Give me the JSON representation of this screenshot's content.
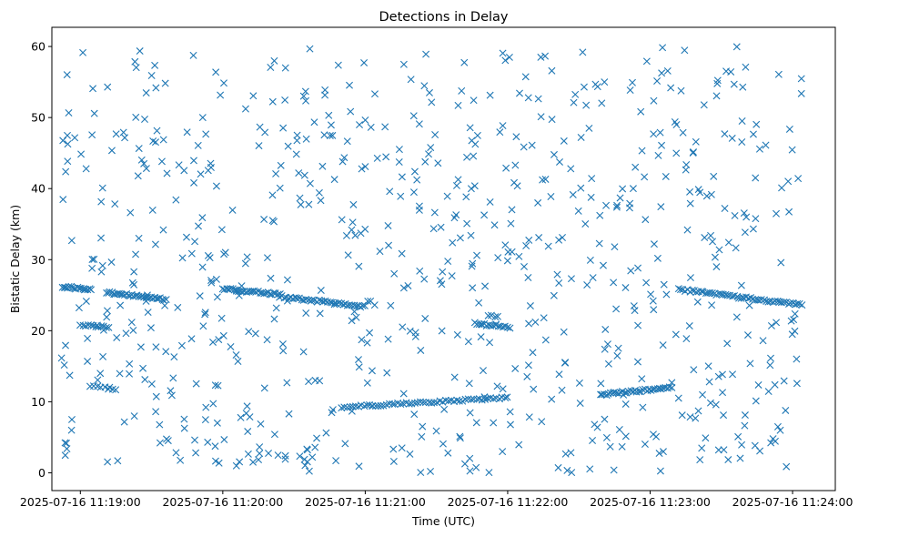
{
  "chart_data": {
    "type": "scatter",
    "title": "Detections in Delay",
    "xlabel": "Time (UTC)",
    "ylabel": "Bistatic Delay (km)",
    "marker": "x",
    "color": "#1f77b4",
    "xlim_seconds": [
      -12,
      318
    ],
    "ylim": [
      -2.5,
      62.7
    ],
    "x_origin": "2025-07-16 11:19:00",
    "x_ticks": [
      {
        "seconds": 0,
        "label": "2025-07-16 11:19:00"
      },
      {
        "seconds": 60,
        "label": "2025-07-16 11:20:00"
      },
      {
        "seconds": 120,
        "label": "2025-07-16 11:21:00"
      },
      {
        "seconds": 180,
        "label": "2025-07-16 11:22:00"
      },
      {
        "seconds": 240,
        "label": "2025-07-16 11:23:00"
      },
      {
        "seconds": 300,
        "label": "2025-07-16 11:24:00"
      }
    ],
    "y_ticks": [
      0,
      10,
      20,
      30,
      40,
      50,
      60
    ],
    "time_span_seconds": [
      -8.5,
      304
    ],
    "tracks": [
      {
        "name": "track-1",
        "t_start": -7.5,
        "t_end": 4.5,
        "y_start": 26.2,
        "y_end": 25.8,
        "points": 18
      },
      {
        "name": "track-2",
        "t_start": 0,
        "t_end": 12,
        "y_start": 20.8,
        "y_end": 20.5,
        "points": 12
      },
      {
        "name": "track-3",
        "t_start": 4,
        "t_end": 15,
        "y_start": 12.2,
        "y_end": 11.8,
        "points": 8
      },
      {
        "name": "track-4",
        "t_start": 11,
        "t_end": 36,
        "y_start": 25.4,
        "y_end": 24.4,
        "points": 34
      },
      {
        "name": "track-5",
        "t_start": 60,
        "t_end": 84,
        "y_start": 25.9,
        "y_end": 25.1,
        "points": 30
      },
      {
        "name": "track-6",
        "t_start": 84,
        "t_end": 120,
        "y_start": 24.8,
        "y_end": 23.4,
        "points": 40
      },
      {
        "name": "track-7",
        "t_start": 110,
        "t_end": 180,
        "y_start": 9.2,
        "y_end": 10.6,
        "points": 60
      },
      {
        "name": "track-8",
        "t_start": 166,
        "t_end": 181,
        "y_start": 21.0,
        "y_end": 20.4,
        "points": 16
      },
      {
        "name": "track-9",
        "t_start": 219,
        "t_end": 249,
        "y_start": 11.0,
        "y_end": 12.0,
        "points": 36
      },
      {
        "name": "track-10",
        "t_start": 252,
        "t_end": 304,
        "y_start": 25.8,
        "y_end": 23.6,
        "points": 56
      }
    ],
    "noise_detections": {
      "count": 760,
      "y_range": [
        0,
        60
      ]
    }
  }
}
